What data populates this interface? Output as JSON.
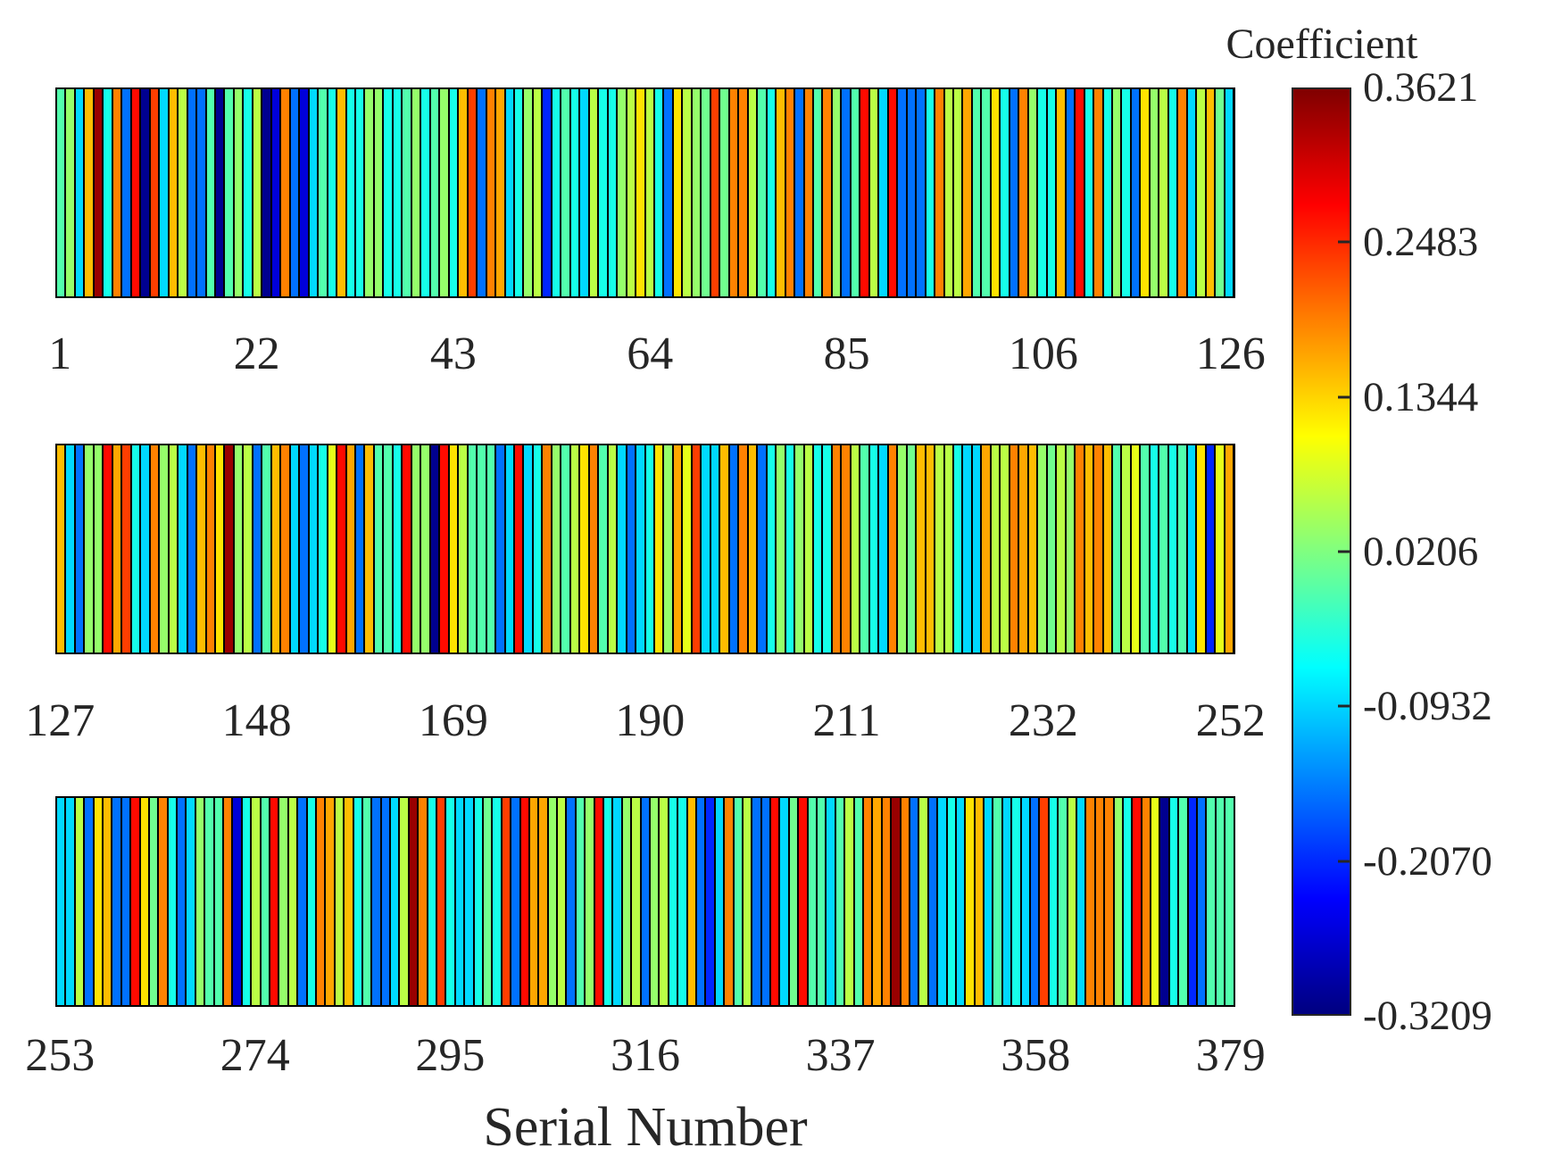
{
  "figure": {
    "xlabel": "Serial Number"
  },
  "colorbar": {
    "title": "Coefficient",
    "tick_labels": [
      "0.3621",
      "0.2483",
      "0.1344",
      "0.0206",
      "-0.0932",
      "-0.2070",
      "-0.3209"
    ],
    "vmin": -0.3209,
    "vmax": 0.3621,
    "colormap": "jet"
  },
  "chart_data": {
    "type": "heatmap",
    "title": "",
    "xlabel": "Serial Number",
    "colorbar_title": "Coefficient",
    "colormap": "jet",
    "vmin": -0.3209,
    "vmax": 0.3621,
    "n_total": 379,
    "legend_position": "right-colorbar",
    "grid": false,
    "rows": [
      {
        "serial_start": 1,
        "serial_end": 126,
        "tick_labels": [
          1,
          22,
          43,
          64,
          85,
          106,
          126
        ],
        "values": [
          -0.01,
          0.035,
          -0.09,
          0.15,
          0.345,
          -0.05,
          0.19,
          -0.16,
          0.27,
          -0.31,
          0.235,
          -0.09,
          0.15,
          0.06,
          -0.16,
          -0.16,
          -0.01,
          -0.31,
          -0.01,
          0.035,
          -0.05,
          0.06,
          -0.31,
          -0.26,
          0.19,
          -0.16,
          -0.26,
          -0.09,
          -0.01,
          -0.05,
          0.15,
          -0.05,
          -0.05,
          0.035,
          0.035,
          -0.05,
          -0.05,
          -0.01,
          0.035,
          -0.05,
          -0.01,
          0.035,
          -0.05,
          0.15,
          0.235,
          -0.16,
          0.19,
          0.165,
          -0.09,
          -0.05,
          0.035,
          0.06,
          -0.21,
          -0.05,
          -0.01,
          -0.05,
          -0.09,
          0.06,
          -0.05,
          -0.05,
          0.035,
          0.06,
          0.125,
          0.06,
          -0.05,
          -0.16,
          0.125,
          0.06,
          0.035,
          0.01,
          0.235,
          0.01,
          0.19,
          0.19,
          0.06,
          -0.01,
          -0.05,
          0.15,
          0.19,
          -0.16,
          0.19,
          -0.01,
          0.19,
          0.035,
          -0.16,
          -0.01,
          0.27,
          0.06,
          -0.09,
          0.27,
          -0.16,
          -0.16,
          -0.16,
          -0.05,
          0.19,
          0.06,
          0.06,
          0.165,
          -0.01,
          -0.01,
          0.125,
          -0.05,
          -0.16,
          0.19,
          0.035,
          -0.05,
          -0.05,
          0.15,
          -0.16,
          0.27,
          -0.05,
          0.19,
          -0.05,
          0.035,
          -0.05,
          -0.16,
          0.125,
          0.035,
          0.06,
          -0.05,
          0.19,
          -0.09,
          0.06,
          0.15,
          0.01,
          -0.09
        ]
      },
      {
        "serial_start": 127,
        "serial_end": 252,
        "tick_labels": [
          127,
          148,
          169,
          190,
          211,
          232,
          252
        ],
        "values": [
          0.15,
          -0.09,
          -0.16,
          0.035,
          0.035,
          0.27,
          0.165,
          0.235,
          -0.05,
          -0.09,
          0.19,
          0.035,
          0.06,
          -0.09,
          -0.16,
          0.15,
          0.19,
          0.125,
          0.345,
          0.035,
          0.06,
          -0.16,
          -0.01,
          0.15,
          0.19,
          -0.09,
          -0.16,
          -0.09,
          -0.05,
          0.09,
          0.27,
          0.165,
          -0.16,
          0.15,
          -0.01,
          -0.01,
          -0.05,
          0.27,
          0.035,
          0.035,
          -0.31,
          0.27,
          0.125,
          0.06,
          -0.01,
          -0.01,
          -0.01,
          -0.16,
          -0.09,
          0.27,
          -0.09,
          -0.05,
          0.19,
          0.035,
          -0.01,
          0.06,
          0.125,
          0.19,
          -0.01,
          0.06,
          -0.09,
          -0.16,
          -0.09,
          -0.05,
          0.125,
          0.035,
          0.165,
          0.09,
          0.235,
          -0.09,
          -0.09,
          0.15,
          -0.16,
          0.19,
          0.15,
          -0.16,
          -0.05,
          0.035,
          -0.05,
          0.035,
          0.06,
          -0.05,
          -0.05,
          0.19,
          0.19,
          0.06,
          -0.01,
          -0.05,
          -0.09,
          0.19,
          0.035,
          0.01,
          0.15,
          0.15,
          0.06,
          0.06,
          -0.05,
          -0.09,
          -0.09,
          0.165,
          0.06,
          0.06,
          0.19,
          0.165,
          0.15,
          0.035,
          0.01,
          0.06,
          0.035,
          0.19,
          0.15,
          0.19,
          0.15,
          -0.01,
          0.06,
          0.09,
          -0.01,
          -0.05,
          -0.01,
          -0.05,
          -0.01,
          -0.09,
          0.125,
          -0.21,
          0.09,
          0.165
        ]
      },
      {
        "serial_start": 253,
        "serial_end": 379,
        "tick_labels": [
          253,
          274,
          295,
          316,
          337,
          358,
          379
        ],
        "values": [
          -0.09,
          -0.09,
          0.06,
          -0.16,
          0.125,
          0.15,
          -0.16,
          -0.16,
          0.27,
          0.125,
          0.01,
          0.19,
          -0.05,
          -0.16,
          -0.09,
          0.035,
          -0.01,
          -0.01,
          0.19,
          -0.26,
          -0.05,
          0.06,
          -0.01,
          0.27,
          0.035,
          0.06,
          -0.16,
          -0.05,
          0.19,
          0.165,
          0.06,
          0.15,
          -0.05,
          -0.01,
          -0.16,
          -0.16,
          -0.09,
          0.06,
          0.345,
          0.19,
          -0.05,
          0.235,
          -0.05,
          -0.09,
          -0.09,
          -0.05,
          0.01,
          -0.05,
          0.235,
          -0.16,
          0.27,
          0.165,
          0.165,
          0.035,
          0.06,
          -0.16,
          -0.01,
          0.035,
          0.27,
          -0.05,
          -0.09,
          0.035,
          0.06,
          -0.16,
          0.035,
          0.06,
          -0.05,
          -0.05,
          0.15,
          -0.16,
          -0.21,
          -0.09,
          0.19,
          -0.01,
          0.06,
          -0.16,
          -0.16,
          0.27,
          -0.09,
          0.01,
          0.27,
          -0.01,
          -0.01,
          -0.09,
          -0.01,
          0.06,
          -0.01,
          0.19,
          0.165,
          0.19,
          0.345,
          0.19,
          -0.16,
          0.06,
          -0.16,
          -0.09,
          -0.05,
          -0.09,
          0.125,
          0.15,
          -0.09,
          -0.01,
          -0.09,
          -0.05,
          -0.09,
          -0.16,
          0.235,
          -0.05,
          -0.01,
          0.06,
          -0.09,
          0.19,
          0.19,
          0.19,
          0.035,
          -0.05,
          0.27,
          0.19,
          0.09,
          -0.31,
          -0.05,
          -0.01,
          -0.21,
          -0.16,
          -0.01,
          -0.01,
          -0.01
        ]
      }
    ]
  }
}
